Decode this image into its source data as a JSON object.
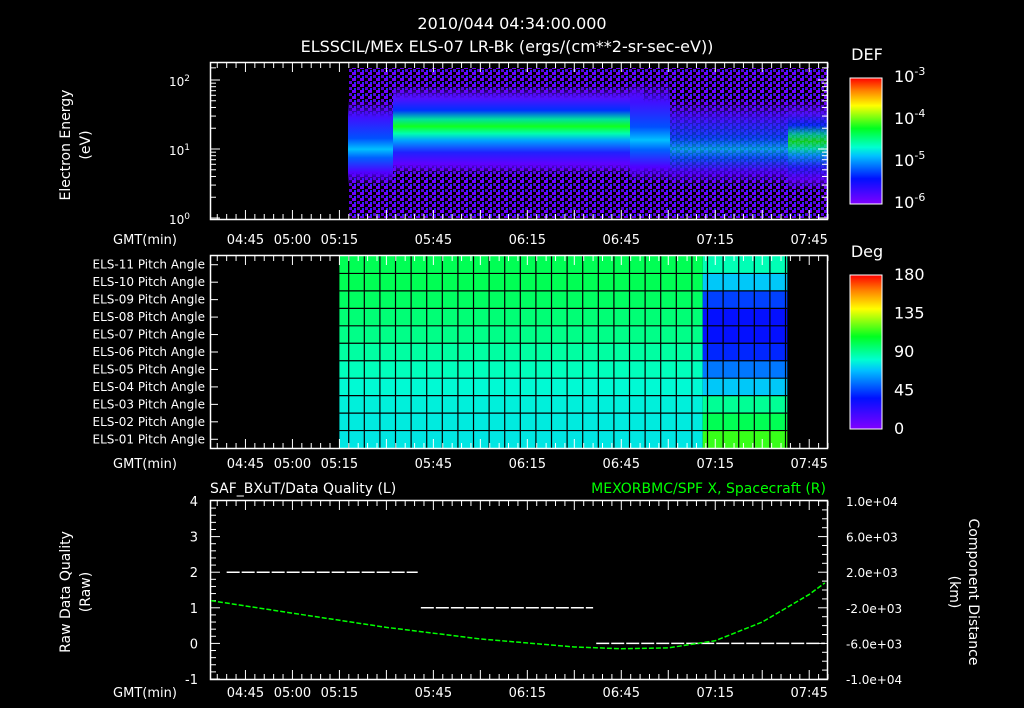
{
  "header": {
    "timestamp": "2010/044 04:34:00.000",
    "subtitle": "ELSSCIL/MEx ELS-07 LR-Bk  (ergs/(cm**2-sr-sec-eV))"
  },
  "time_axis": {
    "label": "GMT(min)",
    "start_min": 274,
    "end_min": 471,
    "ticks": [
      "04:45",
      "05:00",
      "05:15",
      "05:45",
      "06:15",
      "06:45",
      "07:15",
      "07:45"
    ],
    "tick_minutes": [
      285,
      300,
      315,
      345,
      375,
      405,
      435,
      465
    ]
  },
  "panels": {
    "spectrogram": {
      "ylabel": "Electron Energy",
      "yunit": "(eV)",
      "yticks": [
        "10^2",
        "10^1",
        "10^0"
      ],
      "colorbar_title": "DEF",
      "colorbar_ticks": [
        "10^-3",
        "10^-4",
        "10^-5",
        "10^-6"
      ]
    },
    "pitch": {
      "rows": [
        "ELS-11 Pitch Angle",
        "ELS-10 Pitch Angle",
        "ELS-09 Pitch Angle",
        "ELS-08 Pitch Angle",
        "ELS-07 Pitch Angle",
        "ELS-06 Pitch Angle",
        "ELS-05 Pitch Angle",
        "ELS-04 Pitch Angle",
        "ELS-03 Pitch Angle",
        "ELS-02 Pitch Angle",
        "ELS-01 Pitch Angle"
      ],
      "colorbar_title": "Deg",
      "colorbar_ticks": [
        "180",
        "135",
        "90",
        "45",
        "0"
      ]
    },
    "quality": {
      "left_title": "SAF_BXuT/Data Quality (L)",
      "right_title": "MEXORBMC/SPF X, Spacecraft (R)",
      "right_title_color": "#00ff00",
      "ylabel_left": "Raw Data Quality",
      "yunit_left": "(Raw)",
      "ylabel_right": "Component Distance",
      "yunit_right": "(km)",
      "yticks_left": [
        "4",
        "3",
        "2",
        "1",
        "0",
        "-1"
      ],
      "yticks_right": [
        "1.0e+04",
        "6.0e+03",
        "2.0e+03",
        "-2.0e+03",
        "-6.0e+03",
        "-1.0e+04"
      ]
    }
  },
  "chart_data": [
    {
      "type": "heatmap",
      "title": "ELSSCIL/MEx ELS-07 LR-Bk (ergs/(cm**2-sr-sec-eV))",
      "xlabel": "GMT(min)",
      "ylabel": "Electron Energy (eV)",
      "yscale": "log",
      "ylim": [
        1,
        150
      ],
      "x_ticks": [
        "04:45",
        "05:00",
        "05:15",
        "05:45",
        "06:15",
        "06:45",
        "07:15",
        "07:45"
      ],
      "colorbar": {
        "label": "DEF",
        "range": [
          1e-06,
          0.001
        ],
        "scale": "log"
      },
      "data_start": "05:15",
      "features": [
        {
          "time_range": [
            "05:15",
            "05:28"
          ],
          "peak_energy_eV": 8,
          "level": 1e-05
        },
        {
          "time_range": [
            "05:28",
            "06:40"
          ],
          "peak_energy_eV": 25,
          "level": 0.0001
        },
        {
          "time_range": [
            "06:40",
            "06:55"
          ],
          "peak_energy_eV": 30,
          "level": 3e-05
        },
        {
          "time_range": [
            "06:55",
            "07:38"
          ],
          "peak_energy_eV": 10,
          "level": 5e-06
        },
        {
          "time_range": [
            "07:38",
            "07:50"
          ],
          "peak_energy_eV": 15,
          "level": 2e-05
        }
      ]
    },
    {
      "type": "heatmap",
      "title": "ELS Pitch Angle",
      "xlabel": "GMT(min)",
      "categories": [
        "ELS-11",
        "ELS-10",
        "ELS-09",
        "ELS-08",
        "ELS-07",
        "ELS-06",
        "ELS-05",
        "ELS-04",
        "ELS-03",
        "ELS-02",
        "ELS-01"
      ],
      "colorbar": {
        "label": "Deg",
        "range": [
          0,
          180
        ]
      },
      "data_start": "05:15",
      "segments": [
        {
          "time_range": [
            "05:15",
            "07:11"
          ],
          "values": [
            100,
            100,
            98,
            95,
            92,
            88,
            84,
            80,
            78,
            77,
            76
          ]
        },
        {
          "time_range": [
            "07:11",
            "07:38"
          ],
          "values": [
            85,
            70,
            45,
            35,
            35,
            40,
            55,
            70,
            90,
            100,
            115
          ]
        }
      ]
    },
    {
      "type": "line",
      "title": "SAF_BXuT/Data Quality (L) / MEXORBMC/SPF X, Spacecraft (R)",
      "xlabel": "GMT(min)",
      "ylabel": "Raw Data Quality (Raw)",
      "ylim": [
        -1,
        4
      ],
      "y2label": "Component Distance (km)",
      "y2lim": [
        -10000,
        10000
      ],
      "series": [
        {
          "name": "Data Quality (L)",
          "color": "#ffffff",
          "axis": "left",
          "points": [
            [
              "04:39",
              2
            ],
            [
              "05:40",
              2
            ],
            [
              "05:41",
              1
            ],
            [
              "06:36",
              1
            ],
            [
              "06:37",
              0
            ],
            [
              "07:50",
              0
            ]
          ]
        },
        {
          "name": "SPF X (R)",
          "color": "#00ff00",
          "axis": "right",
          "points": [
            [
              "04:34",
              -1200
            ],
            [
              "05:00",
              -2600
            ],
            [
              "05:30",
              -4200
            ],
            [
              "06:00",
              -5500
            ],
            [
              "06:30",
              -6400
            ],
            [
              "06:45",
              -6600
            ],
            [
              "07:00",
              -6500
            ],
            [
              "07:15",
              -5700
            ],
            [
              "07:30",
              -3600
            ],
            [
              "07:45",
              -500
            ],
            [
              "07:50",
              800
            ]
          ]
        }
      ]
    }
  ]
}
